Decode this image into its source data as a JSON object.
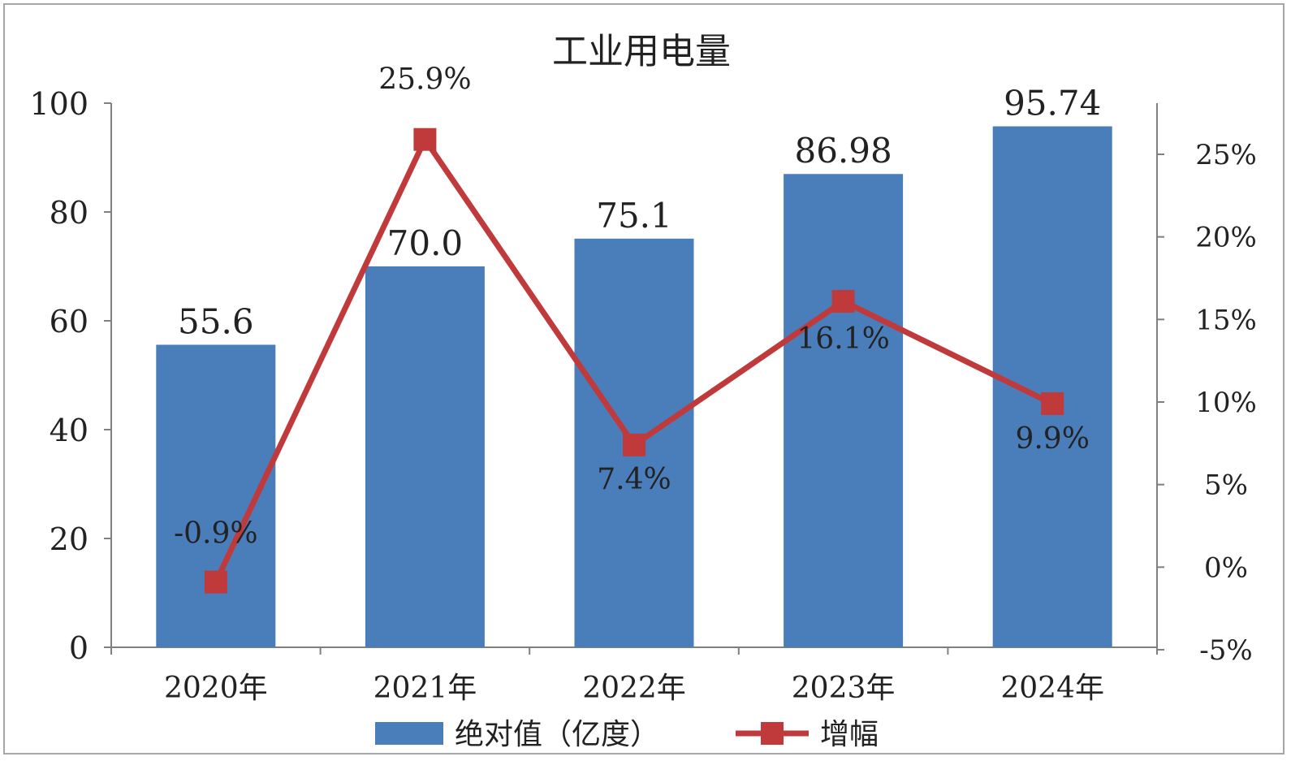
{
  "chart_data": {
    "type": "bar",
    "title": "工业用电量",
    "categories": [
      "2020年",
      "2021年",
      "2022年",
      "2023年",
      "2024年"
    ],
    "series": [
      {
        "name": "绝对值（亿度）",
        "type": "bar",
        "axis": "left",
        "color": "#4a7ebb",
        "values": [
          55.6,
          70.0,
          75.1,
          86.98,
          95.74
        ],
        "labels": [
          "55.6",
          "70.0",
          "75.1",
          "86.98",
          "95.74"
        ]
      },
      {
        "name": "增幅",
        "type": "line",
        "axis": "right",
        "color": "#c0393b",
        "marker": "square",
        "values": [
          -0.9,
          25.9,
          7.4,
          16.1,
          9.9
        ],
        "labels": [
          "-0.9%",
          "25.9%",
          "7.4%",
          "16.1%",
          "9.9%"
        ]
      }
    ],
    "y_left": {
      "min": 0,
      "max": 100,
      "step": 20,
      "ticks": [
        "0",
        "20",
        "40",
        "60",
        "80",
        "100"
      ]
    },
    "y_right": {
      "min": -5,
      "max": 25,
      "step": 5,
      "ticks": [
        "-5%",
        "0%",
        "5%",
        "10%",
        "15%",
        "20%",
        "25%"
      ]
    },
    "grid": false,
    "legend_position": "bottom"
  }
}
